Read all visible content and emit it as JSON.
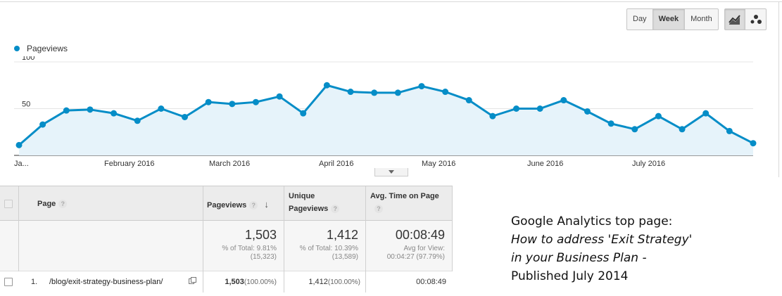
{
  "toolbar": {
    "ranges": [
      {
        "label": "Day",
        "active": false
      },
      {
        "label": "Week",
        "active": true
      },
      {
        "label": "Month",
        "active": false
      }
    ],
    "views": [
      {
        "icon": "line-chart-icon",
        "active": true
      },
      {
        "icon": "motion-chart-icon",
        "active": false
      }
    ]
  },
  "legend": {
    "label": "Pageviews",
    "color": "#058dc7"
  },
  "chart_data": {
    "type": "area",
    "series": [
      {
        "name": "Pageviews",
        "color": "#058dc7",
        "values": [
          11,
          33,
          48,
          49,
          45,
          37,
          50,
          41,
          57,
          55,
          57,
          63,
          45,
          75,
          68,
          67,
          67,
          74,
          68,
          59,
          42,
          50,
          50,
          59,
          47,
          34,
          28,
          42,
          28,
          45,
          26,
          13
        ]
      }
    ],
    "y_ticks": [
      50,
      100
    ],
    "ylim": [
      0,
      100
    ],
    "x_tick_labels": [
      "Ja...",
      "February 2016",
      "March 2016",
      "April 2016",
      "May 2016",
      "June 2016",
      "July 2016"
    ],
    "grid": true
  },
  "table": {
    "headers": {
      "page": "Page",
      "pageviews": "Pageviews",
      "unique_line1": "Unique",
      "unique_line2": "Pageviews",
      "avgtime": "Avg. Time on Page",
      "help": "?",
      "sort_arrow": "↓"
    },
    "totals": {
      "pageviews": "1,503",
      "pageviews_sub1": "% of Total: 9.81%",
      "pageviews_sub2": "(15,323)",
      "unique": "1,412",
      "unique_sub1": "% of Total: 10.39%",
      "unique_sub2": "(13,589)",
      "avgtime": "00:08:49",
      "avgtime_sub1": "Avg for View:",
      "avgtime_sub2": "00:04:27 (97.79%)"
    },
    "rows": [
      {
        "index": "1.",
        "page": "/blog/exit-strategy-business-plan/",
        "pageviews": "1,503",
        "pageviews_pct": "(100.00%)",
        "unique": "1,412",
        "unique_pct": "(100.00%)",
        "avgtime": "00:08:49"
      }
    ]
  },
  "caption": {
    "line1": "Google Analytics top page:",
    "line2": "How to address 'Exit Strategy'",
    "line3": "in your Business Plan -",
    "line4": "Published July 2014"
  }
}
